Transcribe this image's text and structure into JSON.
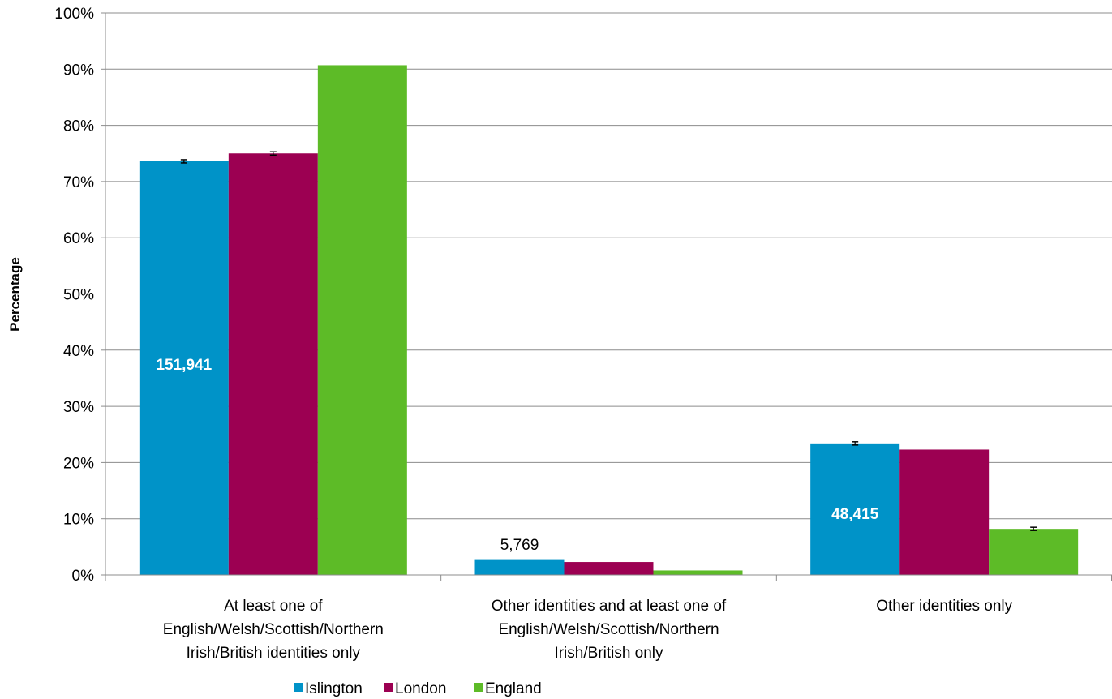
{
  "chart_data": {
    "type": "bar",
    "ylabel": "Percentage",
    "ylim": [
      0,
      100
    ],
    "yticks": [
      "0%",
      "10%",
      "20%",
      "30%",
      "40%",
      "50%",
      "60%",
      "70%",
      "80%",
      "90%",
      "100%"
    ],
    "grid": true,
    "legend_position": "bottom",
    "categories": [
      [
        "At least one of",
        "English/Welsh/Scottish/Northern",
        "Irish/British identities only"
      ],
      [
        "Other identities and at least one of",
        "English/Welsh/Scottish/Northern",
        "Irish/British only"
      ],
      [
        "Other identities only"
      ]
    ],
    "series": [
      {
        "name": "Islington",
        "color": "#0093c8",
        "values": [
          73.6,
          2.8,
          23.4
        ],
        "error_bars": [
          true,
          false,
          true
        ]
      },
      {
        "name": "London",
        "color": "#9c0052",
        "values": [
          75.0,
          2.3,
          22.3
        ],
        "error_bars": [
          true,
          false,
          false
        ]
      },
      {
        "name": "England",
        "color": "#5dbb27",
        "values": [
          90.7,
          0.8,
          8.2
        ],
        "error_bars": [
          false,
          false,
          true
        ]
      }
    ],
    "data_labels": [
      {
        "category": 0,
        "series": 0,
        "text": "151,941",
        "bold": true,
        "color": "#ffffff",
        "y": 37.5
      },
      {
        "category": 1,
        "series": 0,
        "text": "5,769",
        "bold": false,
        "color": "#000000",
        "y": 5.5
      },
      {
        "category": 2,
        "series": 0,
        "text": "48,415",
        "bold": true,
        "color": "#ffffff",
        "y": 11
      }
    ]
  }
}
